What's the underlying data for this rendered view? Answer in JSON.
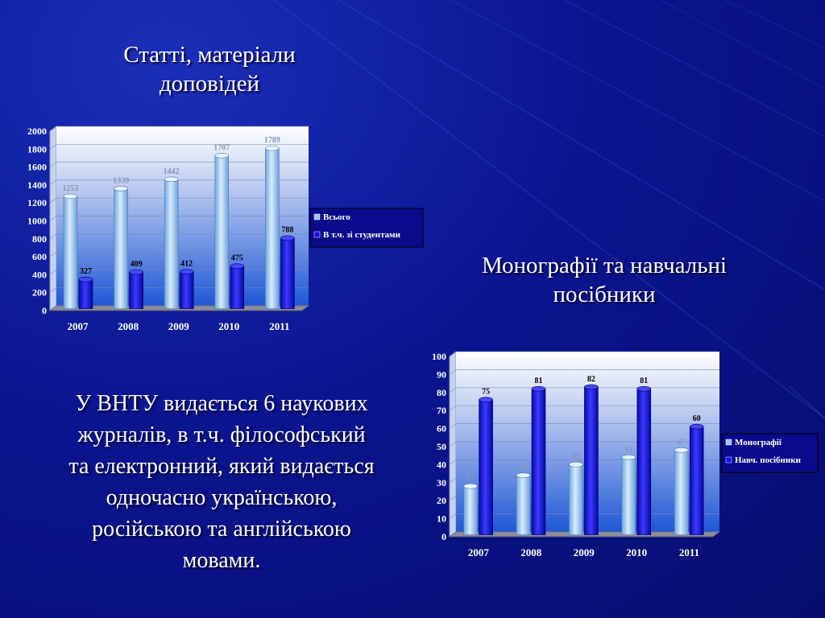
{
  "colors": {
    "background": "#0b1590",
    "series_light": "#9cc8f0",
    "series_dark": "#1010e8",
    "plot_top": "#ffffff",
    "plot_bottom": "#1f57d6"
  },
  "title1": {
    "line1": "Статті, матеріали",
    "line2": "доповідей"
  },
  "title2": {
    "line1": "Монографії та навчальні",
    "line2": "посібники"
  },
  "paragraph": {
    "lines": [
      "У ВНТУ видається 6 наукових",
      "журналів, в т.ч. філософський",
      "та електронний, який видається",
      "одночасно українською,",
      "російською та англійською",
      "мовами."
    ]
  },
  "chart_data": [
    {
      "type": "bar",
      "categories": [
        "2007",
        "2008",
        "2009",
        "2010",
        "2011"
      ],
      "series": [
        {
          "name": "Всього",
          "values": [
            1253,
            1339,
            1442,
            1707,
            1789
          ]
        },
        {
          "name": "В т.ч. зі студентами",
          "values": [
            327,
            409,
            412,
            475,
            788
          ]
        }
      ],
      "ylim": [
        0,
        2000
      ],
      "yticks": [
        "0",
        "200",
        "400",
        "600",
        "800",
        "1000",
        "1200",
        "1400",
        "1600",
        "1800",
        "2000"
      ],
      "legend": "right",
      "grid": true
    },
    {
      "type": "bar",
      "categories": [
        "2007",
        "2008",
        "2009",
        "2010",
        "2011"
      ],
      "series": [
        {
          "name": "Монографії",
          "values": [
            27,
            33,
            39,
            43,
            47
          ]
        },
        {
          "name": "Навч. посібники",
          "values": [
            75,
            81,
            82,
            81,
            60
          ]
        }
      ],
      "ylim": [
        0,
        100
      ],
      "yticks": [
        "0",
        "10",
        "20",
        "30",
        "40",
        "50",
        "60",
        "70",
        "80",
        "90",
        "100"
      ],
      "legend": "right",
      "grid": true
    }
  ]
}
